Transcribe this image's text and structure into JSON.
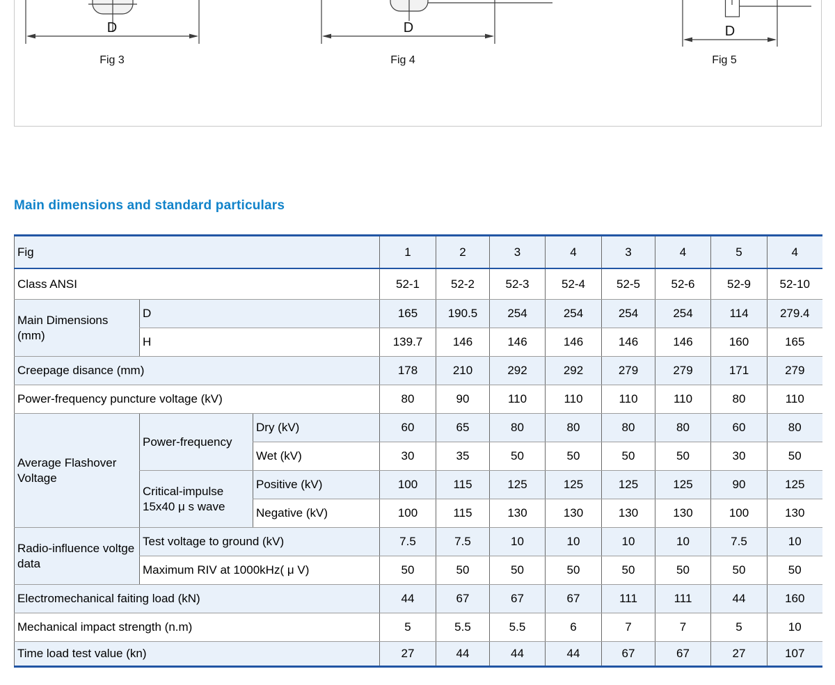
{
  "section_title": "Main dimensions and standard particulars",
  "figures": {
    "fig3": {
      "caption": "Fig 3",
      "dim": "D"
    },
    "fig4": {
      "caption": "Fig 4",
      "dim": "D"
    },
    "fig5": {
      "caption": "Fig 5",
      "dim": "D"
    }
  },
  "colors": {
    "heading_blue": "#1183ca",
    "table_border_blue": "#2155a4",
    "row_highlight": "#e9f1fa",
    "figure_line": "#3c3c3c"
  },
  "table": {
    "groups": {
      "main_dimensions": "Main Dimensions (mm)",
      "flashover": "Average Flashover Voltage",
      "power_frequency": "Power-frequency",
      "critical_impulse": "Critical-impulse 15x40 μ s wave",
      "radio_influence": "Radio-influence voltge data"
    },
    "rows": [
      {
        "key": "fig",
        "label": "Fig",
        "values": [
          "1",
          "2",
          "3",
          "4",
          "3",
          "4",
          "5",
          "4"
        ]
      },
      {
        "key": "class_ansi",
        "label": "Class ANSI",
        "values": [
          "52-1",
          "52-2",
          "52-3",
          "52-4",
          "52-5",
          "52-6",
          "52-9",
          "52-10"
        ]
      },
      {
        "key": "dim_d",
        "label": "D",
        "values": [
          "165",
          "190.5",
          "254",
          "254",
          "254",
          "254",
          "114",
          "279.4"
        ]
      },
      {
        "key": "dim_h",
        "label": "H",
        "values": [
          "139.7",
          "146",
          "146",
          "146",
          "146",
          "146",
          "160",
          "165"
        ]
      },
      {
        "key": "creepage",
        "label": "Creepage disance (mm)",
        "values": [
          "178",
          "210",
          "292",
          "292",
          "279",
          "279",
          "171",
          "279"
        ]
      },
      {
        "key": "puncture",
        "label": "Power-frequency puncture voltage (kV)",
        "values": [
          "80",
          "90",
          "110",
          "110",
          "110",
          "110",
          "80",
          "110"
        ]
      },
      {
        "key": "dry",
        "label": "Dry (kV)",
        "values": [
          "60",
          "65",
          "80",
          "80",
          "80",
          "80",
          "60",
          "80"
        ]
      },
      {
        "key": "wet",
        "label": "Wet (kV)",
        "values": [
          "30",
          "35",
          "50",
          "50",
          "50",
          "50",
          "30",
          "50"
        ]
      },
      {
        "key": "positive",
        "label": "Positive (kV)",
        "values": [
          "100",
          "115",
          "125",
          "125",
          "125",
          "125",
          "90",
          "125"
        ]
      },
      {
        "key": "negative",
        "label": "Negative (kV)",
        "values": [
          "100",
          "115",
          "130",
          "130",
          "130",
          "130",
          "100",
          "130"
        ]
      },
      {
        "key": "test_voltage",
        "label": "Test voltage to ground (kV)",
        "values": [
          "7.5",
          "7.5",
          "10",
          "10",
          "10",
          "10",
          "7.5",
          "10"
        ]
      },
      {
        "key": "max_riv",
        "label": "Maximum RIV at 1000kHz( μ V)",
        "values": [
          "50",
          "50",
          "50",
          "50",
          "50",
          "50",
          "50",
          "50"
        ]
      },
      {
        "key": "electromech",
        "label": "Electromechanical faiting load (kN)",
        "values": [
          "44",
          "67",
          "67",
          "67",
          "111",
          "111",
          "44",
          "160"
        ]
      },
      {
        "key": "impact",
        "label": "Mechanical impact strength (n.m)",
        "values": [
          "5",
          "5.5",
          "5.5",
          "6",
          "7",
          "7",
          "5",
          "10"
        ]
      },
      {
        "key": "time_load",
        "label": "Time load test value (kn)",
        "values": [
          "27",
          "44",
          "44",
          "44",
          "67",
          "67",
          "27",
          "107"
        ]
      }
    ]
  }
}
